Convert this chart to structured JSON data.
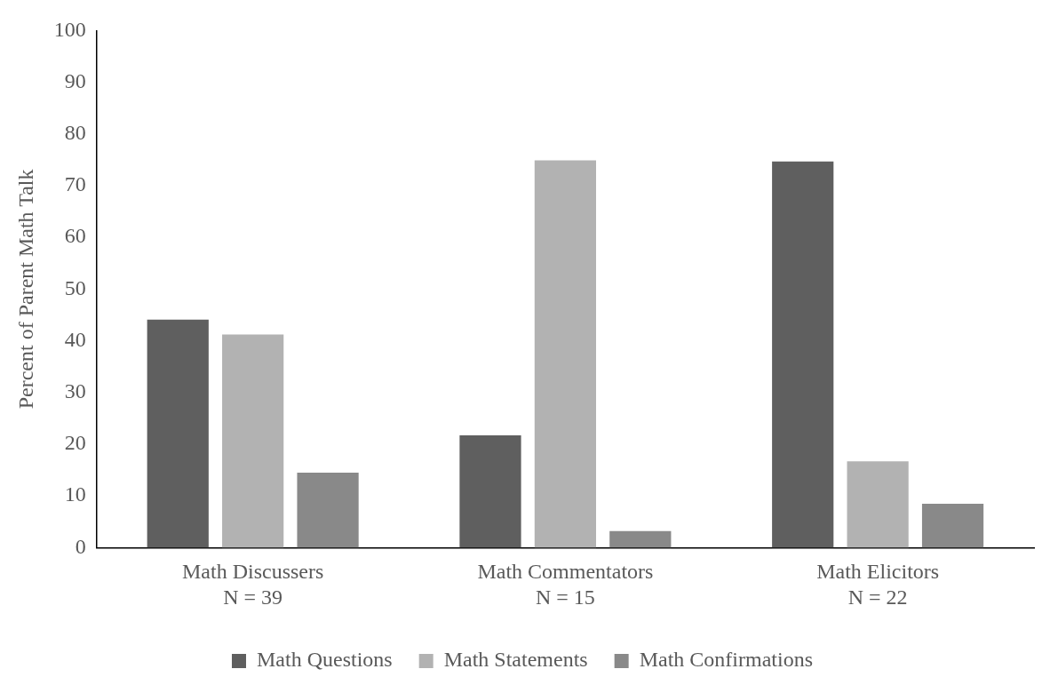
{
  "chart_data": {
    "type": "bar",
    "ylabel": "Percent of Parent Math Talk",
    "categories": [
      "Math Discussers\nN = 39",
      "Math Commentators\nN = 15",
      "Math Elicitors\nN = 22"
    ],
    "series": [
      {
        "name": "Math Questions",
        "color": "#5f5f5f",
        "values": [
          44.1,
          21.7,
          74.7
        ]
      },
      {
        "name": "Math Statements",
        "color": "#b2b2b2",
        "values": [
          41.2,
          74.9,
          16.7
        ]
      },
      {
        "name": "Math Confirmations",
        "color": "#898989",
        "values": [
          14.5,
          3.2,
          8.5
        ]
      }
    ],
    "ylim": [
      0,
      100
    ],
    "yticks": [
      0,
      10,
      20,
      30,
      40,
      50,
      60,
      70,
      80,
      90,
      100
    ],
    "grid": false,
    "legend": "bottom"
  }
}
